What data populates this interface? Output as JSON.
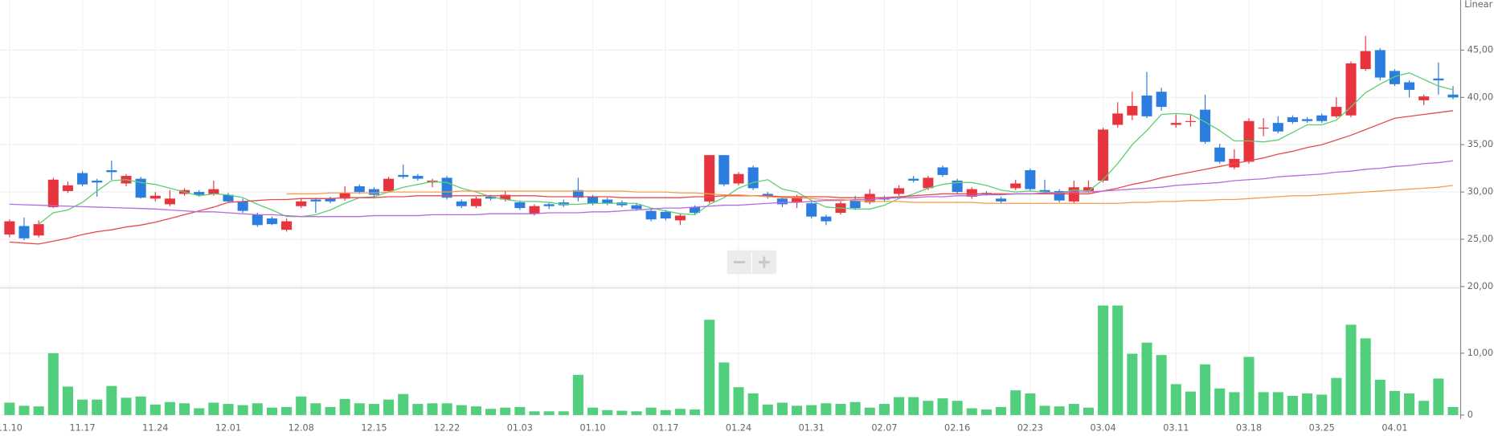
{
  "chart_data": {
    "type": "candlestick",
    "scale_label": "Linear",
    "categories": [
      "11.10",
      null,
      null,
      null,
      null,
      "11.17",
      null,
      null,
      null,
      null,
      "11.24",
      null,
      null,
      null,
      null,
      "12.01",
      null,
      null,
      null,
      null,
      "12.08",
      null,
      null,
      null,
      null,
      "12.15",
      null,
      null,
      null,
      null,
      "12.22",
      null,
      null,
      null,
      null,
      "01.03",
      null,
      null,
      null,
      null,
      "01.10",
      null,
      null,
      null,
      null,
      "01.17",
      null,
      null,
      null,
      null,
      "01.24",
      null,
      null,
      null,
      null,
      "01.31",
      null,
      null,
      null,
      null,
      "02.07",
      null,
      null,
      null,
      null,
      "02.16",
      null,
      null,
      null,
      null,
      "02.23",
      null,
      null,
      null,
      null,
      "03.04",
      null,
      null,
      null,
      null,
      "03.11",
      null,
      null,
      null,
      null,
      "03.18",
      null,
      null,
      null,
      null,
      "03.25",
      null,
      null,
      null,
      null,
      "04.01",
      null,
      null,
      null,
      null
    ],
    "open": [
      25500,
      26400,
      25400,
      28400,
      30100,
      32000,
      31200,
      32300,
      30900,
      31400,
      29300,
      28700,
      29800,
      30000,
      29800,
      29700,
      29000,
      27600,
      27200,
      26000,
      28500,
      29200,
      29300,
      29300,
      30600,
      30300,
      30100,
      31800,
      31700,
      31000,
      31500,
      29000,
      28500,
      29500,
      29200,
      28900,
      27700,
      28700,
      28900,
      30200,
      29500,
      29200,
      28900,
      28600,
      28000,
      27900,
      27000,
      28400,
      29000,
      33900,
      30900,
      32600,
      29800,
      29300,
      28900,
      28800,
      27400,
      27800,
      29100,
      28900,
      29400,
      29800,
      31400,
      30400,
      32600,
      31200,
      29500,
      29900,
      29300,
      30400,
      32300,
      30200,
      30100,
      29000,
      30100,
      31200,
      37100,
      38100,
      40200,
      40600,
      37100,
      37400,
      38700,
      34700,
      32600,
      33200,
      36700,
      37300,
      37900,
      37700,
      38100,
      38000,
      38100,
      43000,
      45000,
      42800,
      41600,
      39700,
      42000,
      40300
    ],
    "high": [
      27100,
      27300,
      27000,
      31500,
      31100,
      32200,
      31400,
      33300,
      31900,
      31600,
      30000,
      30200,
      30400,
      30200,
      31200,
      29900,
      29300,
      27800,
      27400,
      27200,
      29300,
      29400,
      29500,
      30600,
      30800,
      30500,
      31600,
      32900,
      31900,
      31400,
      31700,
      29200,
      29500,
      29700,
      30100,
      29100,
      28700,
      28900,
      29200,
      31500,
      29700,
      29400,
      29100,
      28800,
      28200,
      28100,
      27700,
      28600,
      33900,
      33900,
      32100,
      32800,
      30000,
      29500,
      29700,
      29000,
      27600,
      29000,
      29600,
      30300,
      29600,
      30700,
      31700,
      31700,
      32800,
      31400,
      30500,
      30100,
      29500,
      31300,
      32500,
      31300,
      30300,
      31200,
      31200,
      36800,
      39500,
      40600,
      42700,
      41000,
      38200,
      38200,
      40300,
      35100,
      34500,
      37800,
      37800,
      38000,
      38100,
      37900,
      38300,
      40000,
      43800,
      46500,
      45200,
      43000,
      41800,
      40300,
      43700,
      41200
    ],
    "low": [
      25200,
      24900,
      25200,
      28300,
      29900,
      30600,
      29500,
      31300,
      30600,
      29300,
      29000,
      28500,
      29600,
      29500,
      29600,
      28900,
      27800,
      26300,
      26500,
      25800,
      28300,
      27800,
      28800,
      29100,
      29800,
      29500,
      29900,
      31400,
      31200,
      30500,
      29200,
      28300,
      28300,
      29100,
      29000,
      28100,
      27500,
      28200,
      28400,
      29000,
      28600,
      28600,
      28400,
      28000,
      26900,
      27000,
      26500,
      27600,
      28800,
      30600,
      30700,
      30200,
      29300,
      28400,
      28300,
      27200,
      26500,
      27600,
      28100,
      28700,
      29000,
      29600,
      31000,
      30200,
      31600,
      29800,
      29300,
      29600,
      28800,
      30200,
      30100,
      29800,
      28900,
      28800,
      29900,
      31000,
      36800,
      37600,
      37800,
      38600,
      36800,
      36900,
      35100,
      33000,
      32400,
      33000,
      35900,
      36200,
      37200,
      37300,
      37300,
      37800,
      37900,
      42800,
      41800,
      41200,
      40000,
      39200,
      40300,
      39800
    ],
    "close": [
      26900,
      25100,
      26600,
      31300,
      30700,
      30800,
      31000,
      32100,
      31700,
      29400,
      29600,
      29300,
      30200,
      29700,
      30300,
      29000,
      28000,
      26500,
      26600,
      26900,
      29000,
      29000,
      29000,
      29900,
      30000,
      29700,
      31400,
      31600,
      31400,
      31200,
      29400,
      28500,
      29300,
      29300,
      29700,
      28300,
      28500,
      28500,
      28600,
      29400,
      28800,
      28800,
      28600,
      28200,
      27100,
      27200,
      27500,
      27800,
      33900,
      30800,
      31900,
      30400,
      29500,
      28700,
      29500,
      27400,
      26900,
      28800,
      28300,
      29800,
      29200,
      30400,
      31200,
      31500,
      31800,
      30000,
      30300,
      29800,
      29000,
      30900,
      30300,
      30000,
      29100,
      30500,
      30500,
      36600,
      38300,
      39100,
      38000,
      39000,
      37300,
      37500,
      35300,
      33200,
      33500,
      37500,
      36800,
      36400,
      37400,
      37500,
      37500,
      39000,
      43600,
      44900,
      42100,
      41400,
      40800,
      40100,
      41800,
      40000
    ],
    "up_color": "#e8343f",
    "down_color": "#2b7de0",
    "ylim": [
      20000,
      50000
    ],
    "yticks": [
      {
        "value": 20000,
        "label": "20,000"
      },
      {
        "value": 25000,
        "label": "25,000"
      },
      {
        "value": 30000,
        "label": "30,000"
      },
      {
        "value": 35000,
        "label": "35,000"
      },
      {
        "value": 40000,
        "label": "40,000"
      },
      {
        "value": 45000,
        "label": "45,000"
      }
    ],
    "grid": true,
    "moving_averages": [
      {
        "color": "#5ccf72",
        "values": [
          null,
          null,
          26600,
          27800,
          28100,
          28900,
          30100,
          31200,
          31300,
          31000,
          30800,
          30400,
          30000,
          29600,
          29800,
          29700,
          29400,
          28700,
          28100,
          27400,
          27400,
          27600,
          28100,
          28800,
          29400,
          29500,
          30000,
          30500,
          30800,
          31100,
          31000,
          30400,
          30000,
          29500,
          29200,
          29000,
          29000,
          28900,
          28700,
          28700,
          28800,
          28800,
          28800,
          28800,
          28300,
          28000,
          27700,
          27600,
          28700,
          29400,
          30400,
          31000,
          31300,
          30300,
          30000,
          29100,
          28400,
          28300,
          28200,
          28200,
          28600,
          29300,
          29800,
          30400,
          30800,
          31000,
          31000,
          30700,
          30200,
          30000,
          30100,
          30000,
          29900,
          30200,
          30100,
          31300,
          33000,
          35000,
          36500,
          38200,
          38300,
          38200,
          37400,
          36500,
          35400,
          35400,
          35300,
          35500,
          36300,
          37100,
          37100,
          37600,
          39000,
          40500,
          41400,
          42200,
          42600,
          41900,
          41200,
          40800
        ]
      },
      {
        "color": "#e84a4a",
        "values": [
          24700,
          24600,
          24500,
          24800,
          25100,
          25500,
          25800,
          26000,
          26300,
          26500,
          26800,
          27200,
          27600,
          28000,
          28400,
          28900,
          29000,
          29100,
          29200,
          29200,
          29300,
          29300,
          29300,
          29400,
          29400,
          29400,
          29500,
          29500,
          29600,
          29600,
          29600,
          29600,
          29600,
          29600,
          29600,
          29600,
          29600,
          29500,
          29500,
          29500,
          29500,
          29500,
          29400,
          29400,
          29400,
          29400,
          29400,
          29500,
          29500,
          29600,
          29600,
          29600,
          29600,
          29500,
          29500,
          29500,
          29500,
          29400,
          29400,
          29400,
          29400,
          29500,
          29600,
          29700,
          29800,
          29800,
          29800,
          29800,
          29800,
          29800,
          29800,
          29800,
          29800,
          29800,
          29800,
          30100,
          30400,
          30800,
          31100,
          31500,
          31800,
          32100,
          32400,
          32700,
          33000,
          33300,
          33600,
          34000,
          34300,
          34700,
          35000,
          35500,
          36000,
          36600,
          37200,
          37800,
          38000,
          38200,
          38400,
          38600
        ]
      },
      {
        "color": "#b66ae0",
        "values": [
          28700,
          28650,
          28600,
          28550,
          28500,
          28450,
          28400,
          28350,
          28300,
          28250,
          28200,
          28100,
          28000,
          27900,
          27900,
          27800,
          27700,
          27600,
          27600,
          27500,
          27400,
          27400,
          27400,
          27400,
          27400,
          27500,
          27500,
          27500,
          27500,
          27600,
          27600,
          27600,
          27600,
          27700,
          27700,
          27700,
          27700,
          27800,
          27800,
          27800,
          27900,
          27900,
          28000,
          28100,
          28200,
          28300,
          28300,
          28400,
          28500,
          28600,
          28600,
          28700,
          28800,
          28900,
          28900,
          29000,
          29100,
          29100,
          29200,
          29200,
          29300,
          29400,
          29400,
          29500,
          29500,
          29600,
          29600,
          29700,
          29700,
          29800,
          29800,
          29900,
          29900,
          30000,
          30000,
          30100,
          30200,
          30300,
          30400,
          30500,
          30700,
          30800,
          30900,
          31000,
          31200,
          31300,
          31400,
          31600,
          31700,
          31800,
          31900,
          32100,
          32200,
          32400,
          32500,
          32700,
          32800,
          33000,
          33100,
          33300
        ]
      },
      {
        "color": "#f2a04d",
        "values": [
          null,
          null,
          null,
          null,
          null,
          null,
          null,
          null,
          null,
          null,
          null,
          null,
          null,
          null,
          null,
          null,
          null,
          null,
          null,
          29800,
          29800,
          29800,
          29900,
          29900,
          29900,
          29900,
          30000,
          30000,
          30000,
          30000,
          30000,
          30100,
          30100,
          30100,
          30100,
          30100,
          30100,
          30100,
          30100,
          30100,
          30100,
          30100,
          30100,
          30000,
          30000,
          30000,
          29900,
          29900,
          29800,
          29700,
          29700,
          29600,
          29500,
          29400,
          29400,
          29300,
          29200,
          29200,
          29100,
          29000,
          29000,
          29000,
          28900,
          28900,
          28900,
          28900,
          28900,
          28800,
          28800,
          28800,
          28800,
          28800,
          28800,
          28800,
          28800,
          28800,
          28800,
          28900,
          28900,
          29000,
          29000,
          29100,
          29100,
          29200,
          29200,
          29300,
          29400,
          29500,
          29600,
          29600,
          29700,
          29800,
          29900,
          30000,
          30100,
          30200,
          30300,
          30400,
          30500,
          30700
        ]
      }
    ],
    "volume": {
      "color": "#52cf7c",
      "values": [
        2000,
        1500,
        1400,
        10000,
        4600,
        2500,
        2500,
        4700,
        2800,
        3000,
        1700,
        2100,
        1900,
        1100,
        2000,
        1800,
        1600,
        1900,
        1200,
        1300,
        3000,
        1900,
        1300,
        2600,
        1900,
        1800,
        2500,
        3400,
        1800,
        1900,
        1900,
        1600,
        1400,
        1000,
        1200,
        1300,
        600,
        600,
        600,
        6500,
        1200,
        800,
        700,
        600,
        1200,
        800,
        1000,
        900,
        15400,
        8500,
        4500,
        3500,
        1700,
        2000,
        1500,
        1600,
        1900,
        1800,
        2100,
        1200,
        1800,
        2900,
        2900,
        2300,
        2700,
        2300,
        1100,
        900,
        1300,
        4000,
        3500,
        1500,
        1400,
        1800,
        1200,
        17700,
        17700,
        9900,
        11700,
        9700,
        5000,
        3800,
        8200,
        4300,
        3700,
        9400,
        3700,
        3700,
        3100,
        3500,
        3300,
        6000,
        14600,
        12400,
        5700,
        3900,
        3500,
        2300,
        5900,
        1300
      ],
      "ylim": [
        0,
        20000
      ],
      "yticks": [
        0,
        {
          "value": 10000,
          "label": "10,000"
        }
      ]
    }
  }
}
